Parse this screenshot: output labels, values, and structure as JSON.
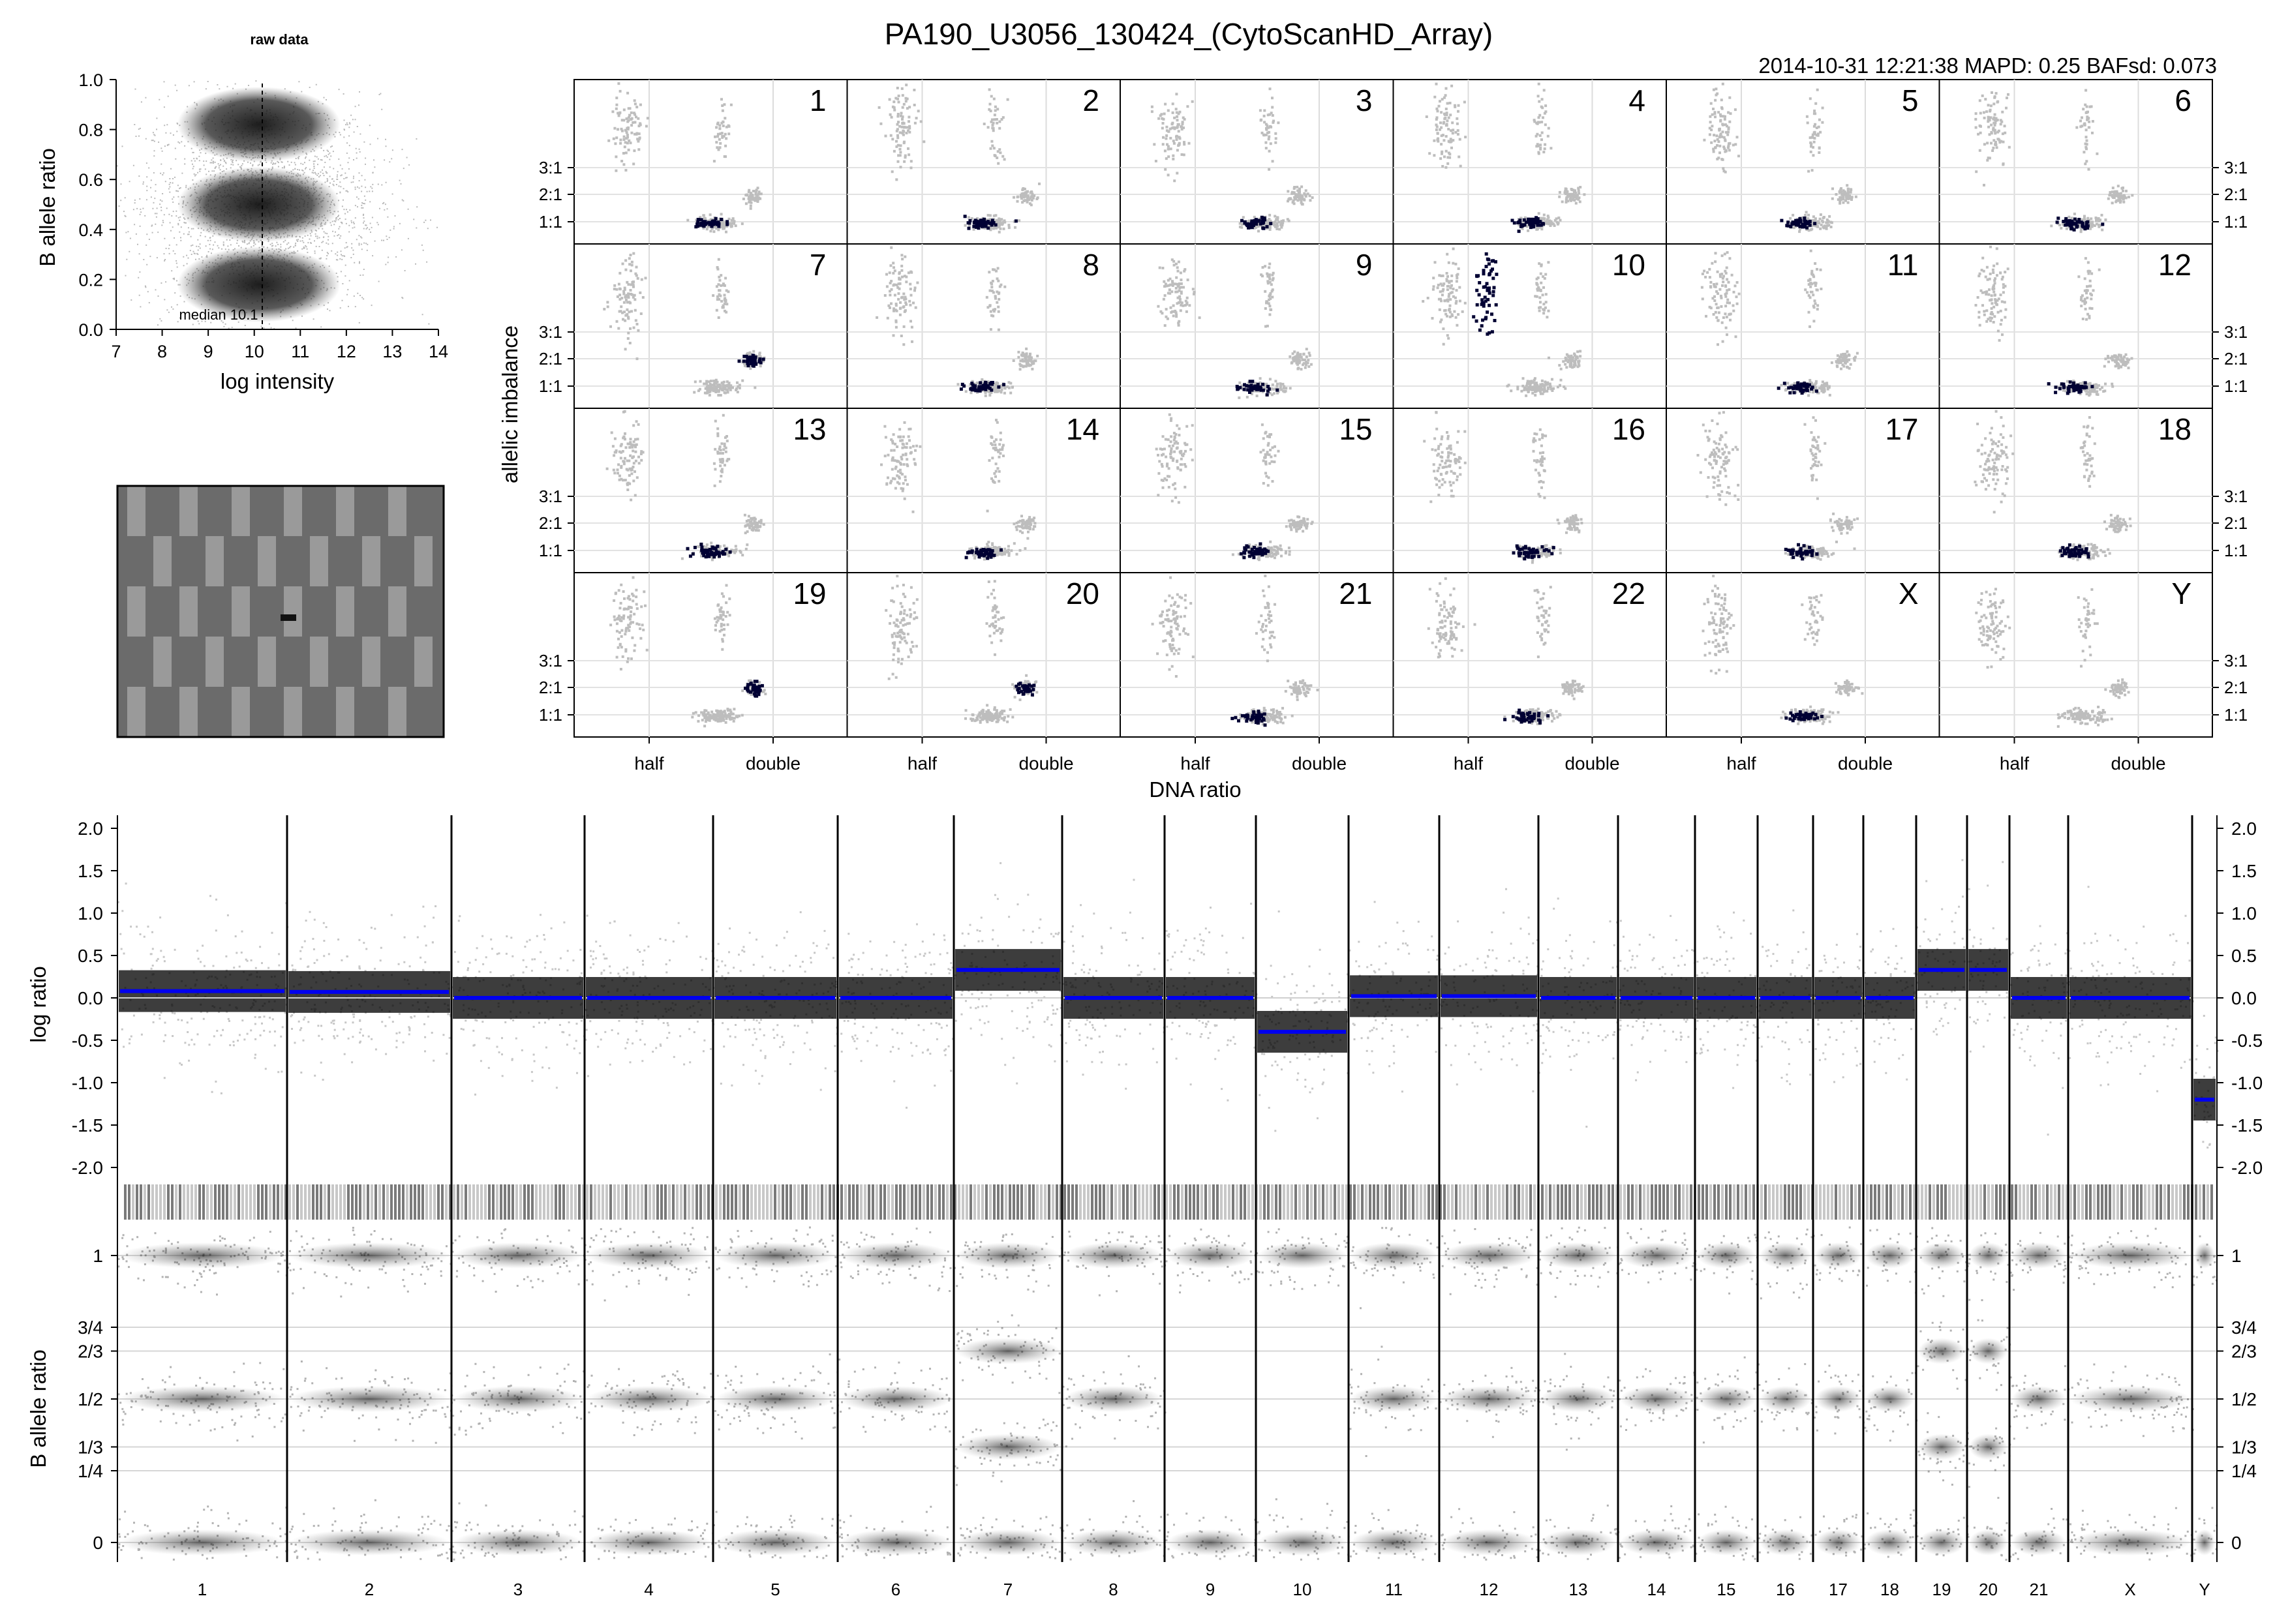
{
  "header": {
    "title": "PA190_U3056_130424_(CytoScanHD_Array)",
    "meta": "2014-10-31 12:21:38  MAPD: 0.25 BAFsd: 0.073"
  },
  "colors": {
    "segment": "#0000ee",
    "highlight": "#000033",
    "background_snps": "#bdbdbd",
    "density": "#333333"
  },
  "raw_panel": {
    "title": "raw data",
    "xlabel": "log intensity",
    "ylabel": "B allele ratio",
    "median_label": "median 10.1",
    "x_ticks": [
      "7",
      "8",
      "9",
      "10",
      "11",
      "12",
      "13",
      "14"
    ],
    "y_ticks": [
      "0.0",
      "0.2",
      "0.4",
      "0.6",
      "0.8",
      "1.0"
    ]
  },
  "chart_data": [
    {
      "type": "scatter",
      "name": "raw data",
      "title": "raw data",
      "xlabel": "log intensity",
      "ylabel": "B allele ratio",
      "xlim": [
        7,
        14
      ],
      "ylim": [
        0.0,
        1.0
      ],
      "median": 10.1,
      "clusters": [
        {
          "b_allele_ratio": 0.82,
          "x_center": 10.1
        },
        {
          "b_allele_ratio": 0.5,
          "x_center": 10.1
        },
        {
          "b_allele_ratio": 0.18,
          "x_center": 10.1
        }
      ]
    },
    {
      "type": "scatter",
      "name": "allelic imbalance vs DNA ratio",
      "xlabel": "DNA ratio",
      "ylabel": "allelic imbalance",
      "x_ticks": [
        "half",
        "double"
      ],
      "y_ticks": [
        "1:1",
        "2:1",
        "3:1"
      ],
      "panels": [
        "1",
        "2",
        "3",
        "4",
        "5",
        "6",
        "7",
        "8",
        "9",
        "10",
        "11",
        "12",
        "13",
        "14",
        "15",
        "16",
        "17",
        "18",
        "19",
        "20",
        "21",
        "22",
        "X",
        "Y"
      ],
      "highlight_cluster": {
        "1": "1:1",
        "2": "1:1",
        "3": "1:1",
        "4": "1:1",
        "5": "1:1",
        "6": "1:1",
        "7": "2:1",
        "8": "1:1",
        "9": "1:1",
        "10": "3:1",
        "11": "1:1",
        "12": "1:1",
        "13": "1:1",
        "14": "1:1",
        "15": "1:1",
        "16": "1:1",
        "17": "1:1",
        "18": "1:1",
        "19": "2:1",
        "20": "2:1",
        "21": "1:1",
        "22": "1:1",
        "X": "1:1",
        "Y": "none"
      }
    },
    {
      "type": "line",
      "name": "log ratio",
      "ylabel": "log ratio",
      "ylim": [
        -2.2,
        2.2
      ],
      "y_ticks": [
        "2.0",
        "1.5",
        "1.0",
        "0.5",
        "0.0",
        "-0.5",
        "-1.0",
        "-1.5",
        "-2.0"
      ],
      "categories": [
        "1",
        "2",
        "3",
        "4",
        "5",
        "6",
        "7",
        "8",
        "9",
        "10",
        "11",
        "12",
        "13",
        "14",
        "15",
        "16",
        "17",
        "18",
        "19",
        "20",
        "21",
        "X",
        "Y"
      ],
      "segment_values": [
        0.08,
        0.07,
        0.0,
        0.0,
        0.0,
        0.0,
        0.33,
        0.0,
        0.0,
        -0.4,
        0.02,
        0.02,
        0.0,
        0.0,
        0.0,
        0.0,
        0.0,
        0.0,
        0.33,
        0.33,
        0.0,
        0.0,
        -1.2
      ]
    },
    {
      "type": "scatter",
      "name": "B allele ratio",
      "ylabel": "B allele ratio",
      "ylim": [
        0,
        1
      ],
      "y_ticks": [
        "1",
        "3/4",
        "2/3",
        "1/2",
        "1/3",
        "1/4",
        "0"
      ],
      "categories": [
        "1",
        "2",
        "3",
        "4",
        "5",
        "6",
        "7",
        "8",
        "9",
        "10",
        "11",
        "12",
        "13",
        "14",
        "15",
        "16",
        "17",
        "18",
        "19",
        "20",
        "21",
        "X",
        "Y"
      ],
      "mid_bands": {
        "1": [
          0.5
        ],
        "2": [
          0.5
        ],
        "3": [
          0.5
        ],
        "4": [
          0.5
        ],
        "5": [
          0.5
        ],
        "6": [
          0.5
        ],
        "7": [
          0.667,
          0.333
        ],
        "8": [
          0.5
        ],
        "9": [],
        "10": [],
        "11": [
          0.5
        ],
        "12": [
          0.5
        ],
        "13": [
          0.5
        ],
        "14": [
          0.5
        ],
        "15": [
          0.5
        ],
        "16": [
          0.5
        ],
        "17": [
          0.5
        ],
        "18": [
          0.5
        ],
        "19": [
          0.667,
          0.333
        ],
        "20": [
          0.667,
          0.333
        ],
        "21": [
          0.5
        ],
        "X": [
          0.5
        ],
        "Y": []
      }
    }
  ]
}
